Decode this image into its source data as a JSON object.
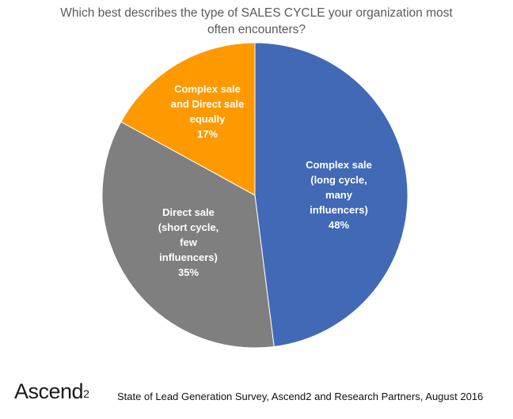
{
  "chart_data": {
    "type": "pie",
    "title_lines": [
      "Which best describes the type of SALES CYCLE your organization most",
      "often encounters?"
    ],
    "slices": [
      {
        "label_lines": [
          "Complex sale",
          "(long cycle,",
          "many",
          "influencers)"
        ],
        "value": 48,
        "value_label": "48%",
        "color": "#4169b6",
        "label_color": "#ffffff"
      },
      {
        "label_lines": [
          "Direct sale",
          "(short cycle,",
          "few",
          "influencers)"
        ],
        "value": 35,
        "value_label": "35%",
        "color": "#7f7f7f",
        "label_color": "#ffffff"
      },
      {
        "label_lines": [
          "Complex sale",
          "and Direct sale",
          "equally"
        ],
        "value": 17,
        "value_label": "17%",
        "color": "#ff9900",
        "label_color": "#ffffff"
      }
    ],
    "start": "12 o'clock",
    "direction": "clockwise",
    "legend": "none"
  },
  "footer": {
    "logo_text": "Ascend",
    "logo_sup": "2",
    "source": "State of Lead Generation Survey, Ascend2 and Research Partners, August 2016"
  }
}
